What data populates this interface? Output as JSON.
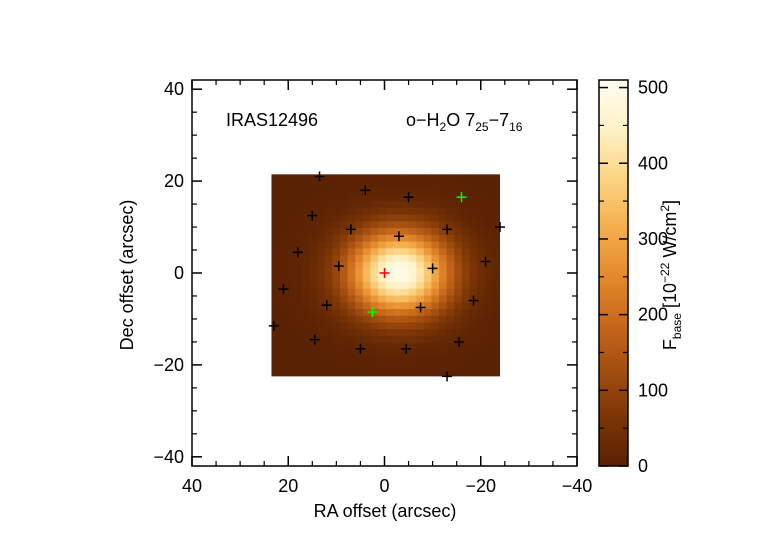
{
  "chart_data": {
    "type": "heatmap",
    "title": "",
    "annotations": {
      "object": "IRAS12496",
      "line_prefix": "o−H",
      "line_sub1": "2",
      "line_mid": "O 7",
      "line_sub2": "25",
      "line_dash": "−7",
      "line_sub3": "16"
    },
    "xlabel": "RA offset (arcsec)",
    "ylabel": "Dec offset (arcsec)",
    "xlim": [
      40,
      -40
    ],
    "ylim": [
      -42,
      42
    ],
    "x_ticks": [
      40,
      20,
      0,
      -20,
      -40
    ],
    "x_tick_labels": [
      "40",
      "20",
      "0",
      "−20",
      "−40"
    ],
    "y_ticks": [
      40,
      20,
      0,
      -20,
      -40
    ],
    "y_tick_labels": [
      "40",
      "20",
      "0",
      "−20",
      "−40"
    ],
    "map_extent": {
      "ra": [
        23.5,
        -24
      ],
      "dec": [
        -22.5,
        21.5
      ]
    },
    "peak": {
      "ra": -3,
      "dec": 0,
      "value": 500
    },
    "colorbar": {
      "label_main": "F",
      "label_sub": "base",
      "label_unit_open": " [10",
      "label_exp": "−22",
      "label_unit_mid": " W/cm",
      "label_exp2": "2",
      "label_close": "]",
      "range": [
        0,
        510
      ],
      "ticks": [
        0,
        100,
        200,
        300,
        400,
        500
      ],
      "tick_labels": [
        "0",
        "100",
        "200",
        "300",
        "400",
        "500"
      ],
      "colormap": [
        "#5a2204",
        "#7c3506",
        "#a34e10",
        "#c96a1c",
        "#e58b2e",
        "#f6b04f",
        "#fcd585",
        "#fff2c8",
        "#fffdf0"
      ]
    },
    "spaxel_markers": [
      {
        "ra": 13.5,
        "dec": 21,
        "color": "black"
      },
      {
        "ra": 4,
        "dec": 18,
        "color": "black"
      },
      {
        "ra": -5,
        "dec": 16.5,
        "color": "black"
      },
      {
        "ra": -16,
        "dec": 16.5,
        "color": "green"
      },
      {
        "ra": 15,
        "dec": 12.5,
        "color": "black"
      },
      {
        "ra": 7,
        "dec": 9.5,
        "color": "black"
      },
      {
        "ra": -13,
        "dec": 9.5,
        "color": "black"
      },
      {
        "ra": -24,
        "dec": 10,
        "color": "black"
      },
      {
        "ra": -3,
        "dec": 8,
        "color": "black"
      },
      {
        "ra": 18,
        "dec": 4.5,
        "color": "black"
      },
      {
        "ra": 9.5,
        "dec": 1.5,
        "color": "black"
      },
      {
        "ra": -10,
        "dec": 1,
        "color": "black"
      },
      {
        "ra": -21,
        "dec": 2.5,
        "color": "black"
      },
      {
        "ra": 0,
        "dec": 0,
        "color": "red"
      },
      {
        "ra": 21,
        "dec": -3.5,
        "color": "black"
      },
      {
        "ra": 12,
        "dec": -7,
        "color": "black"
      },
      {
        "ra": 2.5,
        "dec": -8.5,
        "color": "green"
      },
      {
        "ra": -7.5,
        "dec": -7.5,
        "color": "black"
      },
      {
        "ra": -18.5,
        "dec": -6,
        "color": "black"
      },
      {
        "ra": 23,
        "dec": -11.5,
        "color": "black"
      },
      {
        "ra": 14.5,
        "dec": -14.5,
        "color": "black"
      },
      {
        "ra": 5,
        "dec": -16.5,
        "color": "black"
      },
      {
        "ra": -4.5,
        "dec": -16.5,
        "color": "black"
      },
      {
        "ra": -15.5,
        "dec": -15,
        "color": "black"
      },
      {
        "ra": -13,
        "dec": -22.5,
        "color": "black"
      }
    ]
  }
}
